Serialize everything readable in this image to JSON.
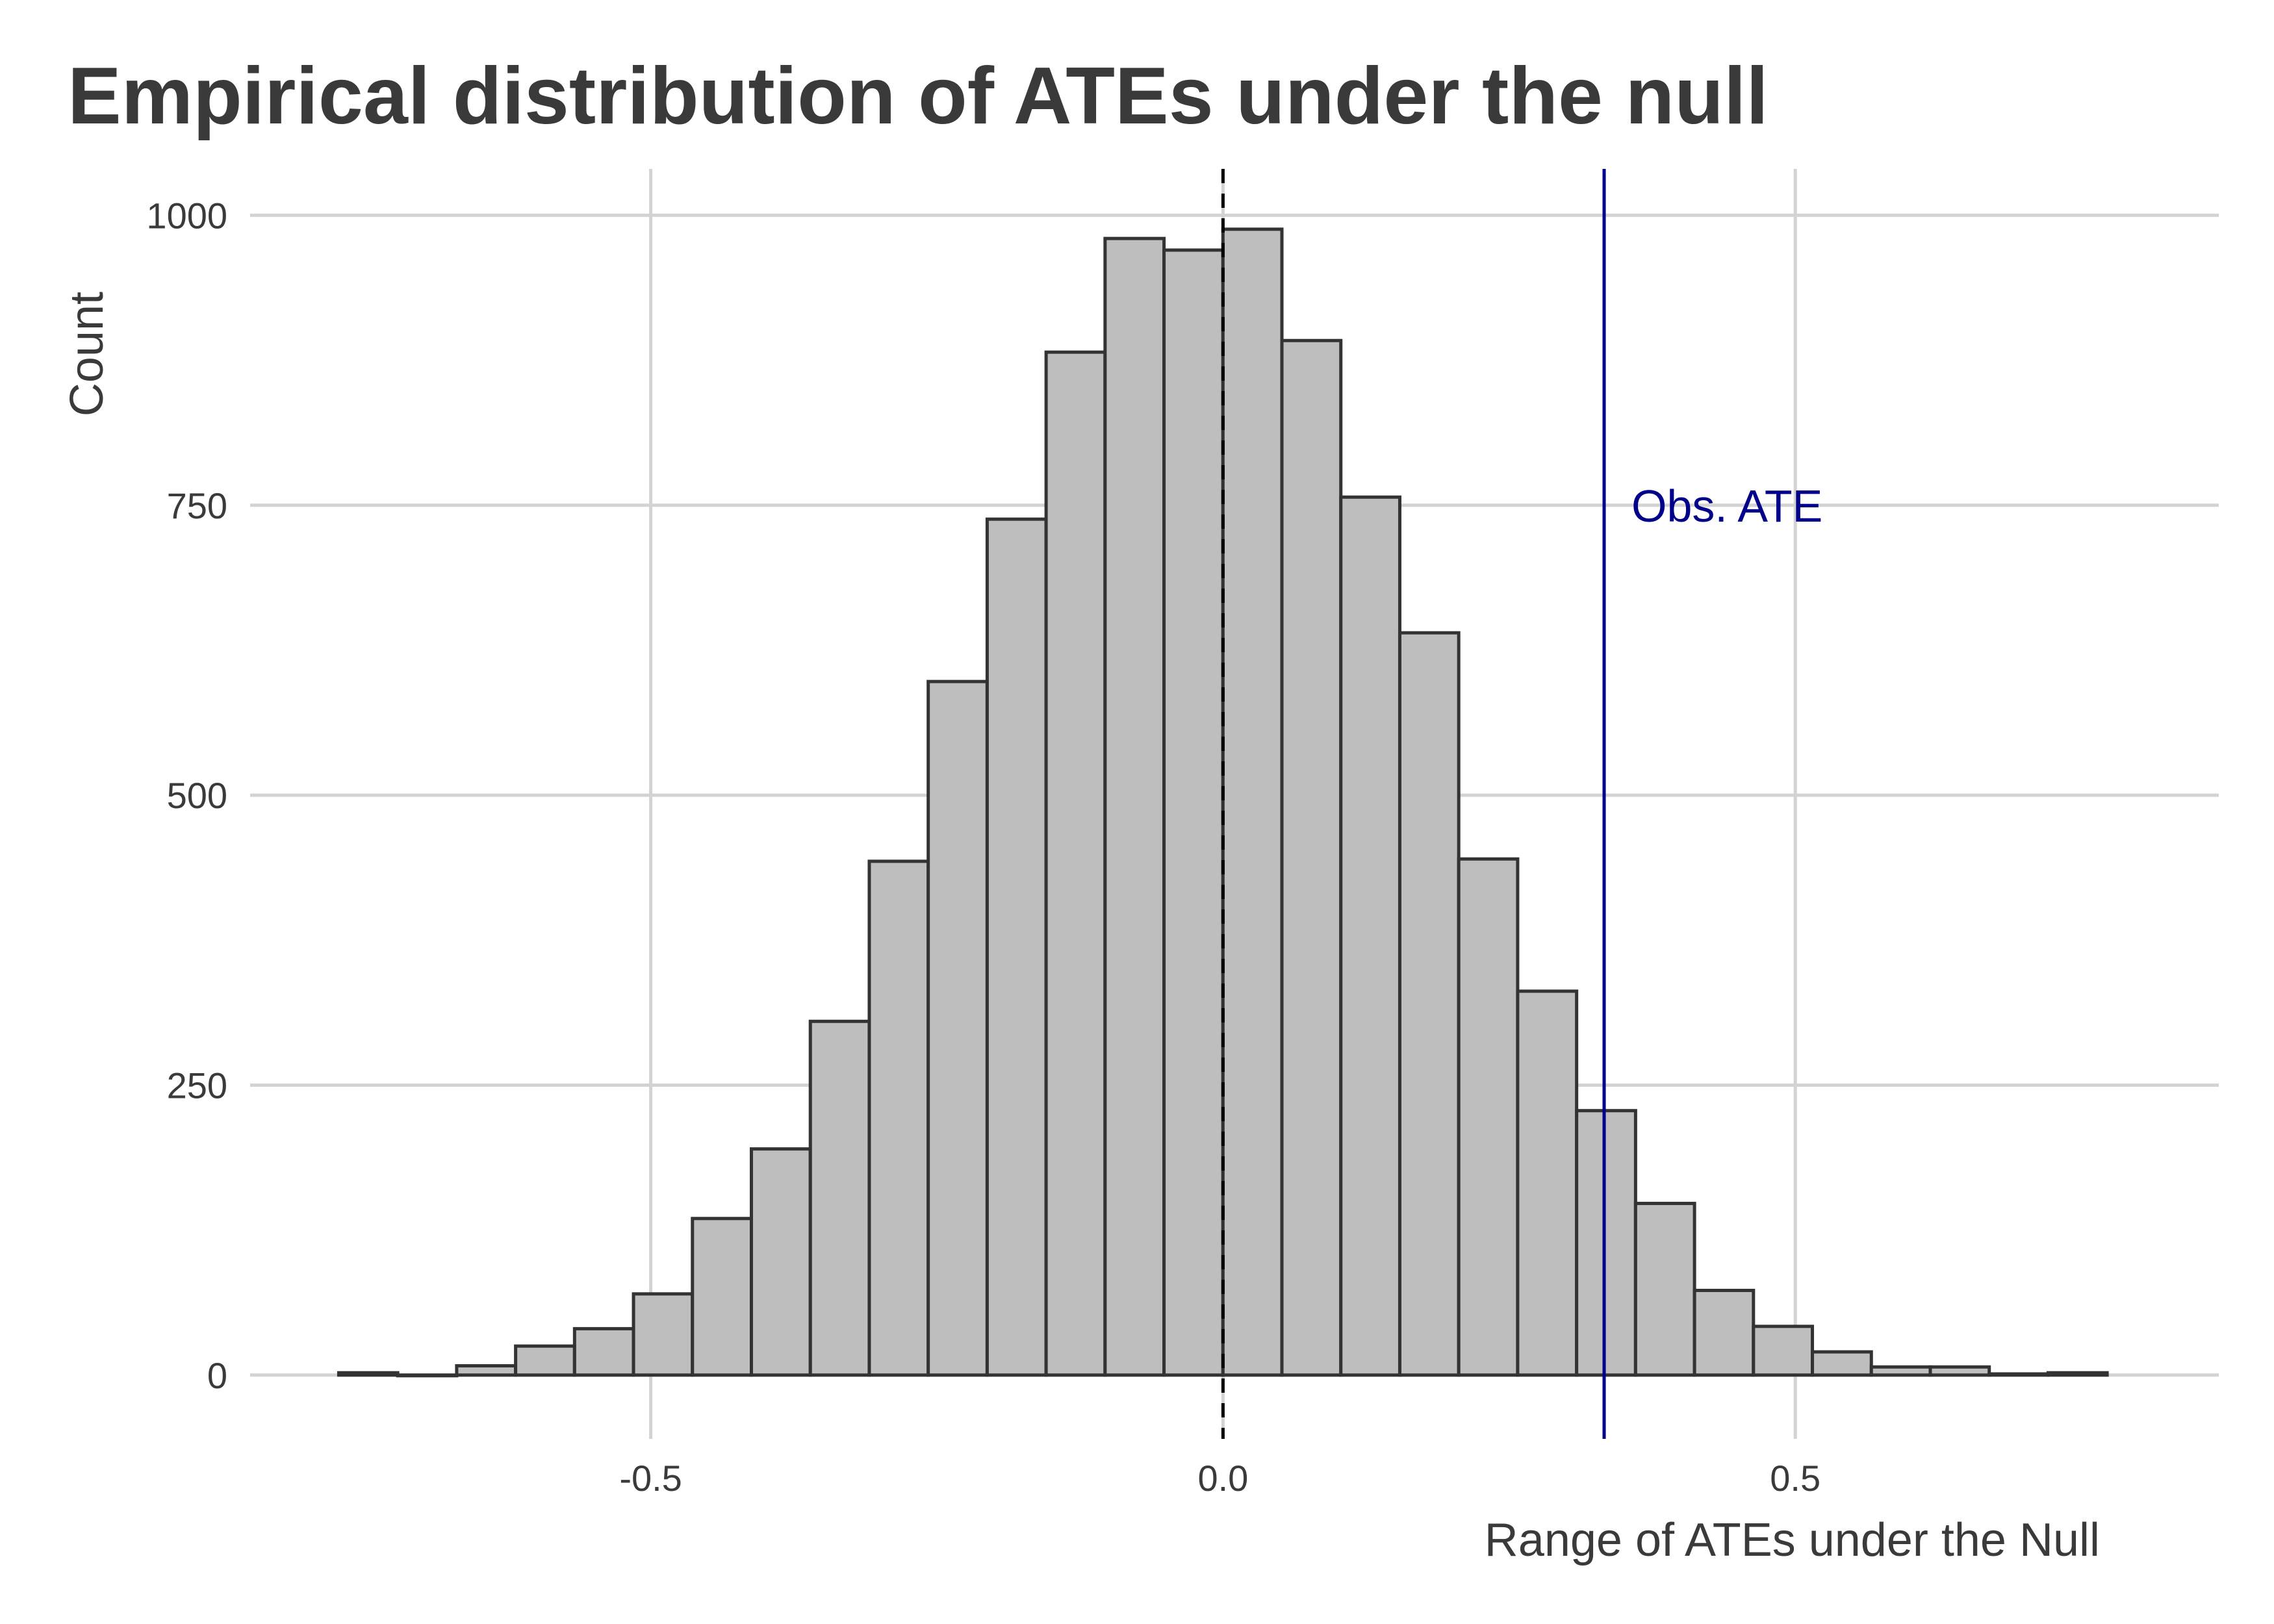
{
  "chart_data": {
    "type": "bar",
    "title": "Empirical distribution of ATEs under the null",
    "xlabel": "Range of ATEs under the Null",
    "ylabel": "Count",
    "xlim": [
      -0.85,
      0.87
    ],
    "ylim": [
      -55,
      1040
    ],
    "x_ticks": [
      -0.5,
      0.0,
      0.5
    ],
    "x_tick_labels": [
      "-0.5",
      "0.0",
      "0.5"
    ],
    "y_ticks": [
      0,
      250,
      500,
      750,
      1000
    ],
    "y_tick_labels": [
      "0",
      "250",
      "500",
      "750",
      "1000"
    ],
    "grid": true,
    "bin_width": 0.0515,
    "bins": [
      {
        "x": -0.7468,
        "count": 2
      },
      {
        "x": -0.6953,
        "count": 0
      },
      {
        "x": -0.6438,
        "count": 8
      },
      {
        "x": -0.5923,
        "count": 25
      },
      {
        "x": -0.5408,
        "count": 40
      },
      {
        "x": -0.4893,
        "count": 70
      },
      {
        "x": -0.4378,
        "count": 135
      },
      {
        "x": -0.3863,
        "count": 195
      },
      {
        "x": -0.3348,
        "count": 305
      },
      {
        "x": -0.2833,
        "count": 443
      },
      {
        "x": -0.2318,
        "count": 598
      },
      {
        "x": -0.1803,
        "count": 738
      },
      {
        "x": -0.1288,
        "count": 882
      },
      {
        "x": -0.0773,
        "count": 980
      },
      {
        "x": -0.0258,
        "count": 970
      },
      {
        "x": 0.0257,
        "count": 988
      },
      {
        "x": 0.0772,
        "count": 892
      },
      {
        "x": 0.1287,
        "count": 757
      },
      {
        "x": 0.1802,
        "count": 640
      },
      {
        "x": 0.2317,
        "count": 445
      },
      {
        "x": 0.2832,
        "count": 331
      },
      {
        "x": 0.3347,
        "count": 228
      },
      {
        "x": 0.3862,
        "count": 148
      },
      {
        "x": 0.4377,
        "count": 73
      },
      {
        "x": 0.4892,
        "count": 42
      },
      {
        "x": 0.5407,
        "count": 20
      },
      {
        "x": 0.5922,
        "count": 7
      },
      {
        "x": 0.6437,
        "count": 7
      },
      {
        "x": 0.6952,
        "count": 1
      },
      {
        "x": 0.7467,
        "count": 2
      }
    ],
    "null_line": {
      "x": 0.0,
      "style": "dashed"
    },
    "observed_line": {
      "x": 0.333,
      "label": "Obs. ATE",
      "color": "#00008b"
    },
    "bar_fill": "#bebebe",
    "bar_stroke": "#333333",
    "grid_color": "#d3d3d3"
  }
}
